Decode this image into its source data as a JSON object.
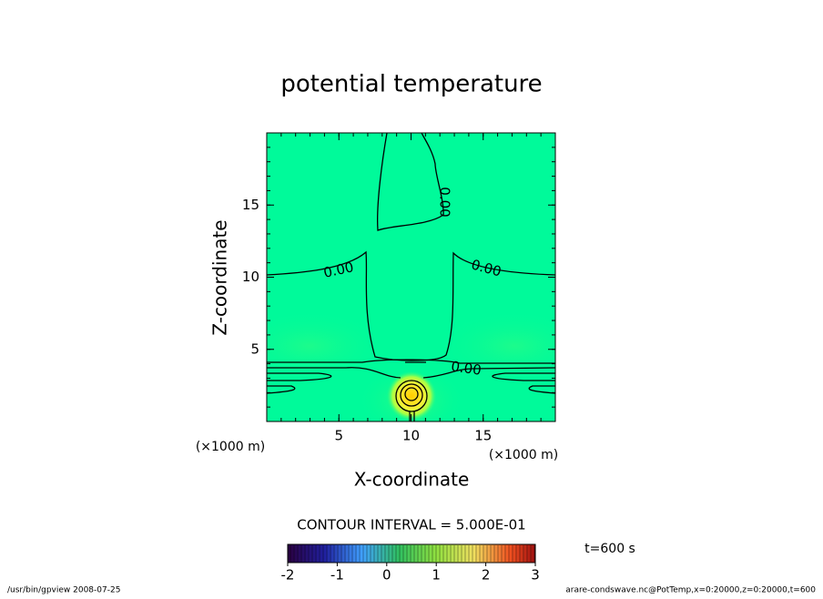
{
  "chart_data": {
    "type": "contour",
    "title": "potential temperature",
    "x_label": "X-coordinate",
    "y_label": "Z-coordinate",
    "x_unit": "(×1000 m)",
    "y_unit": "(×1000 m)",
    "xlim": [
      0,
      20
    ],
    "ylim": [
      0,
      20
    ],
    "xticks": [
      5,
      10,
      15
    ],
    "yticks": [
      5,
      10,
      15
    ],
    "contour_level": {
      "value": 0,
      "label": "0.00"
    },
    "contour_interval_text": "CONTOUR INTERVAL = 5.000E-01",
    "colorbar": {
      "lim": [
        -2,
        3
      ],
      "ticks": [
        -2,
        -1,
        0,
        1,
        2,
        3
      ]
    },
    "time_label": "t=600 s",
    "footer_left": "/usr/bin/gpview   2008-07-25",
    "footer_right": "arare-condswave.nc@PotTemp,x=0:20000,z=0:20000,t=600"
  }
}
